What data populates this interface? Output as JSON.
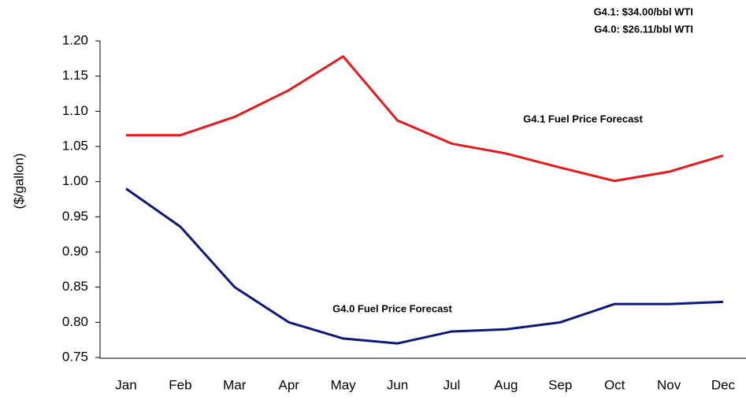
{
  "chart_data": {
    "type": "line",
    "y_label": "($/gallon)",
    "annotations": [
      "G4.1: $34.00/bbl WTI",
      "G4.0: $26.11/bbl WTI"
    ],
    "categories": [
      "Jan",
      "Feb",
      "Mar",
      "Apr",
      "May",
      "Jun",
      "Jul",
      "Aug",
      "Sep",
      "Oct",
      "Nov",
      "Dec"
    ],
    "series": [
      {
        "name": "G4.1 Fuel Price Forecast",
        "color": "#e8191c",
        "values": [
          1.066,
          1.066,
          1.092,
          1.13,
          1.178,
          1.087,
          1.054,
          1.04,
          1.02,
          1.001,
          1.014,
          1.037
        ]
      },
      {
        "name": "G4.0 Fuel Price Forecast",
        "color": "#0d1a7a",
        "values": [
          0.99,
          0.936,
          0.85,
          0.8,
          0.777,
          0.77,
          0.787,
          0.79,
          0.8,
          0.826,
          0.826,
          0.829
        ]
      }
    ],
    "ylim": [
      0.75,
      1.2
    ],
    "yticks": [
      0.75,
      {
        "value": 0.8,
        "label": "0.80"
      },
      0.85,
      {
        "value": 0.9,
        "label": "0.90"
      },
      0.95,
      {
        "value": 1.0,
        "label": "1.00"
      },
      1.05,
      {
        "value": 1.1,
        "label": "1.10"
      },
      1.15,
      {
        "value": 1.2,
        "label": "1.20"
      }
    ]
  }
}
